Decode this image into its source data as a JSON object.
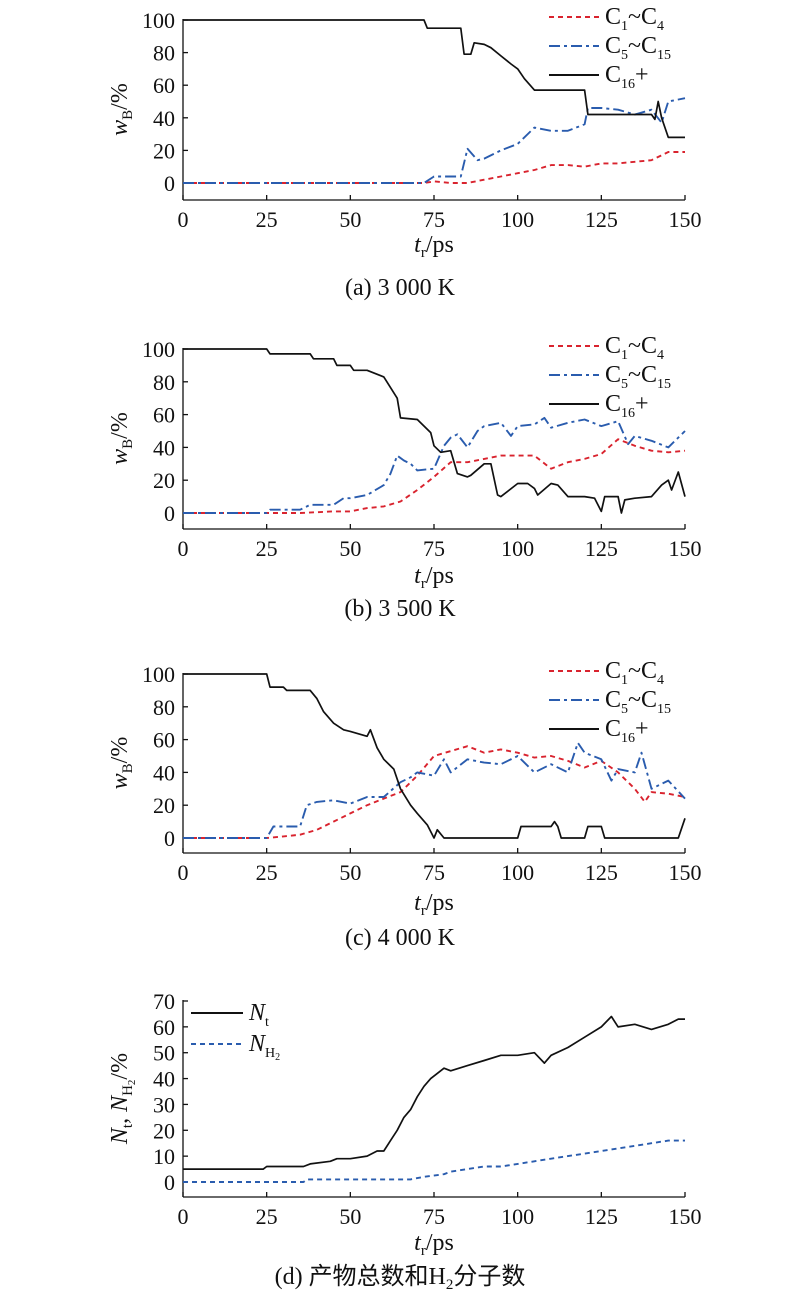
{
  "chart_data": [
    {
      "type": "line",
      "caption": "(a) 3 000 K",
      "xlabel_main": "t",
      "xlabel_sub": "r",
      "xlabel_unit": "/ps",
      "ylabel_main": "w",
      "ylabel_sub": "B",
      "ylabel_unit": "/%",
      "xlim": [
        0,
        150
      ],
      "ylim": [
        -10,
        100
      ],
      "xticks": [
        "0",
        "25",
        "50",
        "75",
        "100",
        "125",
        "150"
      ],
      "yticks": [
        "0",
        "20",
        "40",
        "60",
        "80",
        "100"
      ],
      "legend_position": "top-right",
      "series": [
        {
          "name": "C1~C4",
          "label_parts": [
            "C",
            "1",
            "~C",
            "4",
            ""
          ],
          "color": "#d9232e",
          "dash": "dash",
          "x": [
            0,
            72,
            75,
            80,
            85,
            90,
            95,
            100,
            105,
            110,
            115,
            120,
            125,
            130,
            135,
            140,
            145,
            150
          ],
          "y": [
            0,
            0,
            1,
            0,
            0,
            2,
            4,
            6,
            8,
            11,
            11,
            10,
            12,
            12,
            13,
            14,
            19,
            19
          ]
        },
        {
          "name": "C5~C15",
          "label_parts": [
            "C",
            "5",
            "~C",
            "15",
            ""
          ],
          "color": "#2a5cae",
          "dash": "dashdot",
          "x": [
            0,
            72,
            75,
            80,
            83,
            85,
            88,
            90,
            95,
            100,
            105,
            110,
            115,
            120,
            121,
            125,
            130,
            135,
            140,
            143,
            145,
            150
          ],
          "y": [
            0,
            0,
            4,
            4,
            4,
            21,
            14,
            15,
            20,
            24,
            34,
            32,
            32,
            36,
            46,
            46,
            45,
            42,
            45,
            37,
            50,
            52
          ]
        },
        {
          "name": "C16+",
          "label_parts": [
            "C",
            "16",
            "+",
            "",
            ""
          ],
          "color": "#111111",
          "dash": "solid",
          "x": [
            0,
            72,
            73,
            83,
            84,
            86,
            87,
            90,
            92,
            95,
            98,
            100,
            102,
            105,
            110,
            115,
            120,
            121,
            125,
            130,
            135,
            140,
            141,
            142,
            143,
            145,
            150
          ],
          "y": [
            100,
            100,
            95,
            95,
            79,
            79,
            86,
            85,
            83,
            78,
            73,
            70,
            64,
            57,
            57,
            57,
            57,
            42,
            42,
            42,
            42,
            42,
            39,
            50,
            40,
            28,
            28
          ]
        }
      ]
    },
    {
      "type": "line",
      "caption": "(b) 3 500 K",
      "xlabel_main": "t",
      "xlabel_sub": "r",
      "xlabel_unit": "/ps",
      "ylabel_main": "w",
      "ylabel_sub": "B",
      "ylabel_unit": "/%",
      "xlim": [
        0,
        150
      ],
      "ylim": [
        -10,
        100
      ],
      "xticks": [
        "0",
        "25",
        "50",
        "75",
        "100",
        "125",
        "150"
      ],
      "yticks": [
        "0",
        "20",
        "40",
        "60",
        "80",
        "100"
      ],
      "legend_position": "top-right",
      "series": [
        {
          "name": "C1~C4",
          "label_parts": [
            "C",
            "1",
            "~C",
            "4",
            ""
          ],
          "color": "#d9232e",
          "dash": "dash",
          "x": [
            0,
            25,
            35,
            45,
            50,
            55,
            60,
            65,
            70,
            75,
            80,
            85,
            90,
            95,
            100,
            105,
            110,
            115,
            120,
            125,
            130,
            135,
            140,
            145,
            150
          ],
          "y": [
            0,
            0,
            0,
            1,
            1,
            3,
            4,
            7,
            14,
            22,
            31,
            31,
            33,
            35,
            35,
            35,
            27,
            31,
            33,
            36,
            45,
            41,
            38,
            37,
            38
          ]
        },
        {
          "name": "C5~C15",
          "label_parts": [
            "C",
            "5",
            "~C",
            "15",
            ""
          ],
          "color": "#2a5cae",
          "dash": "dashdot",
          "x": [
            0,
            25,
            26,
            35,
            38,
            45,
            48,
            50,
            55,
            60,
            62,
            64,
            66,
            68,
            70,
            75,
            78,
            80,
            82,
            85,
            88,
            90,
            95,
            98,
            100,
            105,
            108,
            110,
            115,
            120,
            125,
            130,
            133,
            135,
            140,
            145,
            150
          ],
          "y": [
            0,
            0,
            2,
            2,
            5,
            5,
            9,
            9,
            11,
            17,
            24,
            35,
            32,
            30,
            26,
            27,
            41,
            46,
            48,
            40,
            50,
            53,
            55,
            47,
            53,
            54,
            58,
            52,
            55,
            57,
            53,
            56,
            42,
            47,
            44,
            40,
            50
          ]
        },
        {
          "name": "C16+",
          "label_parts": [
            "C",
            "16",
            "+",
            "",
            ""
          ],
          "color": "#111111",
          "dash": "solid",
          "x": [
            0,
            25,
            26,
            38,
            39,
            45,
            46,
            50,
            51,
            55,
            60,
            64,
            65,
            70,
            74,
            75,
            77,
            80,
            82,
            85,
            86,
            90,
            92,
            94,
            95,
            100,
            103,
            105,
            106,
            110,
            112,
            115,
            120,
            123,
            125,
            126,
            130,
            131,
            132,
            135,
            140,
            143,
            145,
            146,
            148,
            150
          ],
          "y": [
            100,
            100,
            97,
            97,
            94,
            94,
            90,
            90,
            87,
            87,
            83,
            70,
            58,
            57,
            49,
            41,
            37,
            38,
            24,
            22,
            23,
            30,
            30,
            11,
            10,
            18,
            18,
            15,
            11,
            18,
            17,
            10,
            10,
            9,
            1,
            10,
            10,
            0,
            8,
            9,
            10,
            17,
            20,
            14,
            25,
            10
          ]
        }
      ]
    },
    {
      "type": "line",
      "caption": "(c) 4 000 K",
      "xlabel_main": "t",
      "xlabel_sub": "r",
      "xlabel_unit": "/ps",
      "ylabel_main": "w",
      "ylabel_sub": "B",
      "ylabel_unit": "/%",
      "xlim": [
        0,
        150
      ],
      "ylim": [
        -10,
        100
      ],
      "xticks": [
        "0",
        "25",
        "50",
        "75",
        "100",
        "125",
        "150"
      ],
      "yticks": [
        "0",
        "20",
        "40",
        "60",
        "80",
        "100"
      ],
      "legend_position": "top-right",
      "series": [
        {
          "name": "C1~C4",
          "label_parts": [
            "C",
            "1",
            "~C",
            "4",
            ""
          ],
          "color": "#d9232e",
          "dash": "dash",
          "x": [
            0,
            25,
            30,
            35,
            40,
            45,
            50,
            55,
            60,
            65,
            70,
            75,
            80,
            85,
            90,
            95,
            100,
            105,
            110,
            115,
            120,
            125,
            130,
            135,
            138,
            140,
            145,
            150
          ],
          "y": [
            0,
            0,
            1,
            2,
            5,
            10,
            15,
            20,
            24,
            28,
            38,
            50,
            53,
            56,
            52,
            54,
            52,
            49,
            50,
            47,
            43,
            47,
            40,
            30,
            22,
            28,
            27,
            25
          ]
        },
        {
          "name": "C5~C15",
          "label_parts": [
            "C",
            "5",
            "~C",
            "15",
            ""
          ],
          "color": "#2a5cae",
          "dash": "dashdot",
          "x": [
            0,
            25,
            27,
            35,
            37,
            40,
            45,
            50,
            55,
            60,
            65,
            68,
            70,
            75,
            78,
            80,
            85,
            90,
            95,
            100,
            105,
            110,
            115,
            118,
            120,
            125,
            128,
            130,
            135,
            137,
            140,
            145,
            150
          ],
          "y": [
            0,
            0,
            7,
            7,
            20,
            22,
            23,
            21,
            25,
            25,
            34,
            37,
            40,
            38,
            48,
            40,
            48,
            46,
            45,
            50,
            40,
            45,
            40,
            58,
            52,
            48,
            35,
            42,
            40,
            52,
            30,
            35,
            24
          ]
        },
        {
          "name": "C16+",
          "label_parts": [
            "C",
            "16",
            "+",
            "",
            ""
          ],
          "color": "#111111",
          "dash": "solid",
          "x": [
            0,
            25,
            26,
            30,
            31,
            38,
            40,
            42,
            45,
            48,
            50,
            55,
            56,
            58,
            60,
            63,
            65,
            68,
            70,
            73,
            75,
            76,
            78,
            80,
            85,
            100,
            101,
            105,
            110,
            111,
            112,
            113,
            120,
            121,
            125,
            126,
            127,
            140,
            145,
            148,
            150
          ],
          "y": [
            100,
            100,
            92,
            92,
            90,
            90,
            85,
            77,
            70,
            66,
            65,
            62,
            66,
            55,
            48,
            42,
            30,
            20,
            15,
            8,
            0,
            5,
            0,
            0,
            0,
            0,
            7,
            7,
            7,
            10,
            7,
            0,
            0,
            7,
            7,
            0,
            0,
            0,
            0,
            0,
            12
          ]
        }
      ]
    },
    {
      "type": "line",
      "caption": "(d) 产物总数和H₂分子数",
      "xlabel_main": "t",
      "xlabel_sub": "r",
      "xlabel_unit": "/ps",
      "ylabel_text": "Nt, NH₂/%",
      "xlim": [
        0,
        150
      ],
      "ylim": [
        -5,
        70
      ],
      "xticks": [
        "0",
        "25",
        "50",
        "75",
        "100",
        "125",
        "150"
      ],
      "yticks": [
        "0",
        "10",
        "20",
        "30",
        "40",
        "50",
        "60",
        "70"
      ],
      "legend_position": "top-left",
      "series": [
        {
          "name": "Nt",
          "label_parts": [
            "N",
            "t",
            "",
            "",
            ""
          ],
          "color": "#111111",
          "dash": "solid",
          "x": [
            0,
            24,
            25,
            36,
            38,
            44,
            46,
            50,
            55,
            58,
            60,
            62,
            64,
            66,
            68,
            70,
            72,
            74,
            76,
            78,
            80,
            85,
            90,
            95,
            100,
            105,
            108,
            110,
            115,
            120,
            125,
            128,
            130,
            135,
            140,
            145,
            148,
            150
          ],
          "y": [
            5,
            5,
            6,
            6,
            7,
            8,
            9,
            9,
            10,
            12,
            12,
            16,
            20,
            25,
            28,
            33,
            37,
            40,
            42,
            44,
            43,
            45,
            47,
            49,
            49,
            50,
            46,
            49,
            52,
            56,
            60,
            64,
            60,
            61,
            59,
            61,
            63,
            63
          ]
        },
        {
          "name": "NH2",
          "label_parts": [
            "N",
            "H",
            "",
            "2",
            ""
          ],
          "color": "#2a5cae",
          "dash": "dash",
          "x": [
            0,
            36,
            37,
            65,
            68,
            72,
            78,
            80,
            85,
            90,
            95,
            100,
            105,
            110,
            115,
            120,
            125,
            130,
            135,
            140,
            145,
            150
          ],
          "y": [
            0,
            0,
            1,
            1,
            1,
            2,
            3,
            4,
            5,
            6,
            6,
            7,
            8,
            9,
            10,
            11,
            12,
            13,
            14,
            15,
            16,
            16
          ]
        }
      ]
    }
  ]
}
